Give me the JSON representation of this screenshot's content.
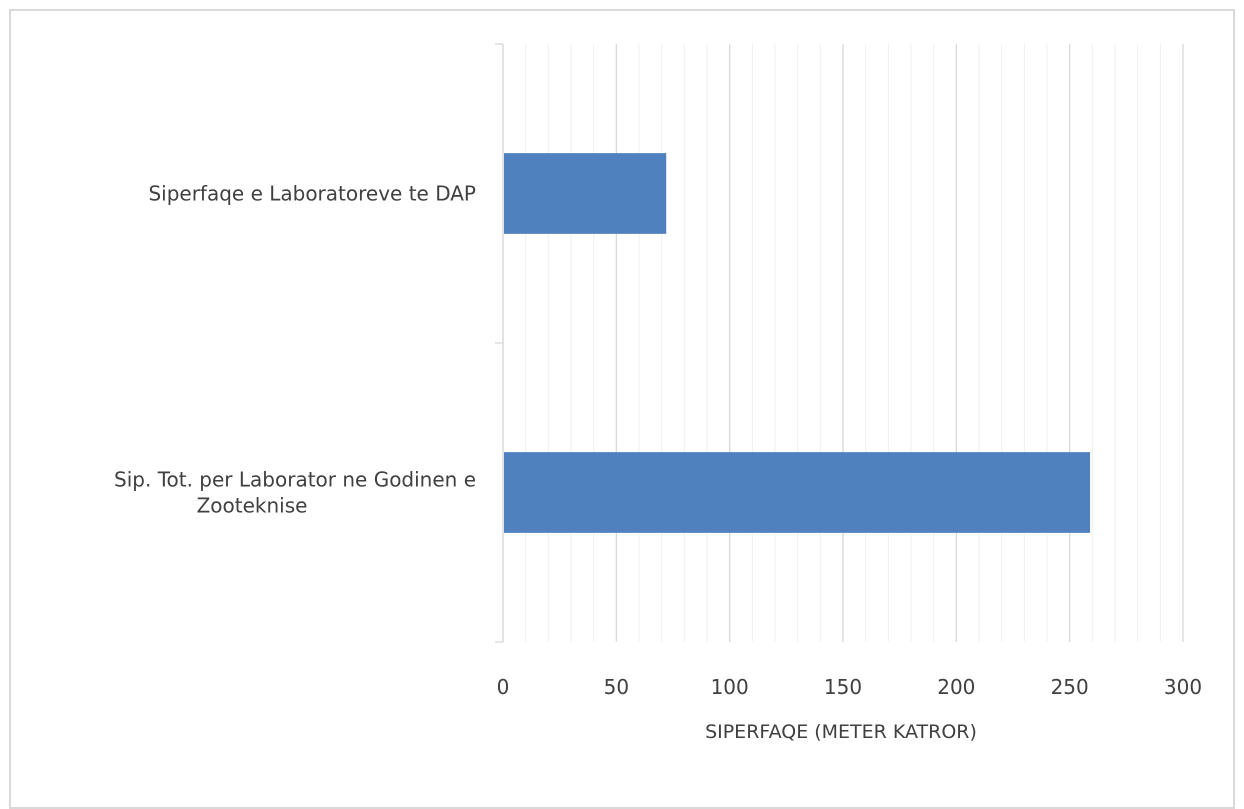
{
  "chart_data": {
    "type": "bar",
    "orientation": "horizontal",
    "categories": [
      "Siperfaqe e Laboratoreve te DAP",
      "Sip. Tot. per Laborator ne Godinen e Zooteknise"
    ],
    "category_label_lines": [
      [
        "Siperfaqe e Laboratoreve te DAP"
      ],
      [
        "Sip. Tot. per Laborator ne Godinen e",
        "Zooteknise"
      ]
    ],
    "values": [
      72,
      259
    ],
    "xlabel": "SIPERFAQE (METER KATROR)",
    "ylabel": "",
    "xlim": [
      0,
      300
    ],
    "xticks": [
      0,
      50,
      100,
      150,
      200,
      250,
      300
    ],
    "xticks_minor": [
      0,
      10,
      20,
      30,
      40,
      50,
      60,
      70,
      80,
      90,
      100,
      110,
      120,
      130,
      140,
      150,
      160,
      170,
      180,
      190,
      200,
      210,
      220,
      230,
      240,
      250,
      260,
      270,
      280,
      290,
      300
    ],
    "grid": true,
    "legend": "none",
    "bar_color": "#4e81bd",
    "major_grid_color": "#d9d9d9",
    "minor_grid_color": "#efefef"
  }
}
